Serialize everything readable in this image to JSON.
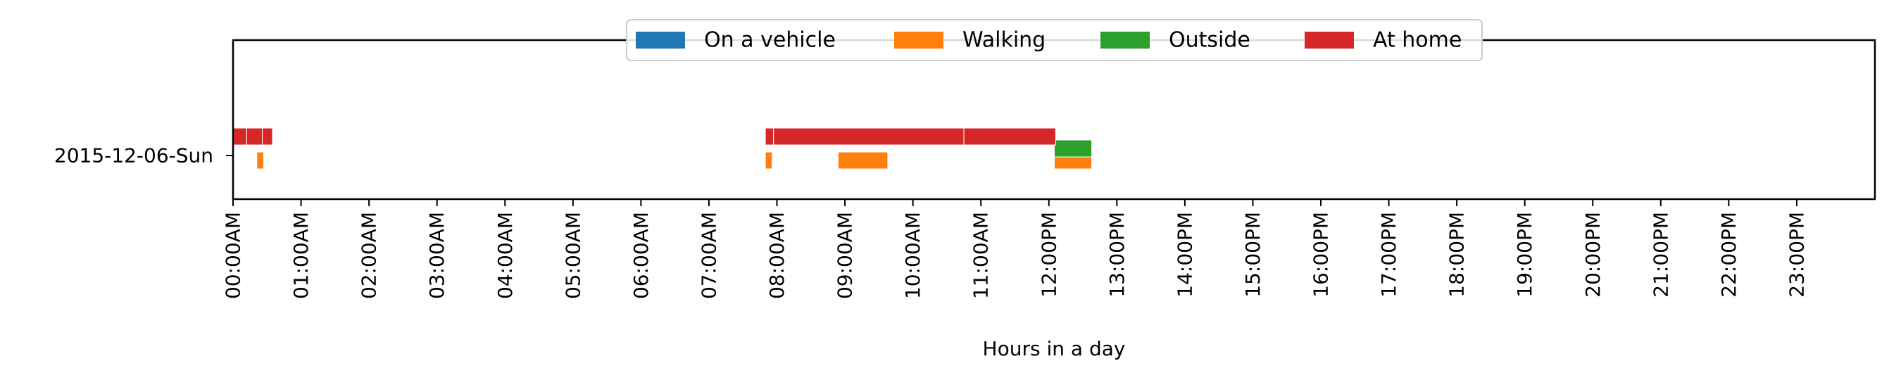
{
  "chart_data": {
    "type": "timeline",
    "xlabel": "Hours in a day",
    "xlim_hours": [
      0,
      24.15
    ],
    "x_ticks": [
      "00:00AM",
      "01:00AM",
      "02:00AM",
      "03:00AM",
      "04:00AM",
      "05:00AM",
      "06:00AM",
      "07:00AM",
      "08:00AM",
      "09:00AM",
      "10:00AM",
      "11:00AM",
      "12:00PM",
      "13:00PM",
      "14:00PM",
      "15:00PM",
      "16:00PM",
      "17:00PM",
      "18:00PM",
      "19:00PM",
      "20:00PM",
      "21:00PM",
      "22:00PM",
      "23:00PM"
    ],
    "y_categories": [
      "2015-12-06-Sun"
    ],
    "legend_placement": "upper-center",
    "grid": false,
    "series": [
      {
        "name": "On a vehicle",
        "color": "#1f77b4",
        "intervals": []
      },
      {
        "name": "Walking",
        "color": "#ff7f0e",
        "intervals": [
          [
            0.35,
            0.45
          ],
          [
            7.83,
            7.93
          ],
          [
            8.9,
            9.63
          ],
          [
            12.08,
            12.63
          ]
        ]
      },
      {
        "name": "Outside",
        "color": "#2ca02c",
        "intervals": [
          [
            12.08,
            12.63
          ]
        ]
      },
      {
        "name": "At home",
        "color": "#d62728",
        "intervals": [
          [
            0.0,
            0.2
          ],
          [
            0.2,
            0.43
          ],
          [
            0.43,
            0.58
          ],
          [
            7.83,
            7.95
          ],
          [
            7.95,
            10.75
          ],
          [
            10.75,
            12.1
          ]
        ]
      }
    ]
  }
}
